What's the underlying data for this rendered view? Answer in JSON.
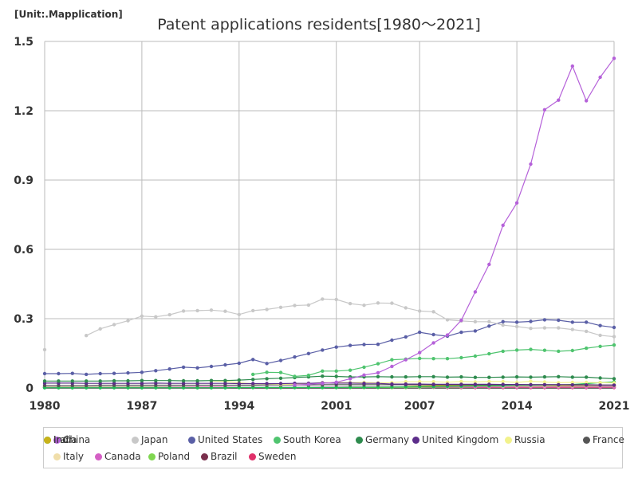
{
  "unit_label": "[Unit:.Mapplication]",
  "chart_data": {
    "type": "line",
    "title": "Patent applications residents[1980～2021]",
    "xlabel": "",
    "ylabel": "",
    "xlim": [
      1980,
      2021
    ],
    "ylim": [
      0,
      1.5
    ],
    "x_ticks": [
      "1980",
      "1987",
      "1994",
      "2001",
      "2007",
      "2014",
      "2021"
    ],
    "y_ticks": [
      "0",
      "0.3",
      "0.6",
      "0.9",
      "1.2",
      "1.5"
    ],
    "grid": true,
    "legend_position": "bottom",
    "x": [
      1980,
      1981,
      1982,
      1983,
      1984,
      1985,
      1986,
      1987,
      1988,
      1989,
      1990,
      1991,
      1992,
      1993,
      1994,
      1995,
      1996,
      1997,
      1998,
      1999,
      2000,
      2001,
      2002,
      2003,
      2004,
      2005,
      2006,
      2007,
      2008,
      2009,
      2010,
      2011,
      2012,
      2013,
      2014,
      2015,
      2016,
      2017,
      2018,
      2019,
      2020,
      2021
    ],
    "series": [
      {
        "name": "China",
        "color": "#b561d9",
        "values": [
          null,
          null,
          null,
          null,
          null,
          null,
          null,
          null,
          null,
          null,
          null,
          null,
          null,
          null,
          null,
          null,
          null,
          null,
          0.013,
          0.016,
          0.02,
          0.025,
          0.04,
          0.056,
          0.066,
          0.093,
          0.122,
          0.153,
          0.195,
          0.229,
          0.293,
          0.416,
          0.535,
          0.704,
          0.801,
          0.969,
          1.204,
          1.246,
          1.393,
          1.243,
          1.345,
          1.427
        ]
      },
      {
        "name": "Japan",
        "color": "#c8c8c8",
        "values": [
          0.166,
          null,
          null,
          0.227,
          0.256,
          0.274,
          0.291,
          0.311,
          0.308,
          0.317,
          0.333,
          0.335,
          0.337,
          0.332,
          0.318,
          0.335,
          0.34,
          0.349,
          0.357,
          0.359,
          0.385,
          0.383,
          0.365,
          0.358,
          0.368,
          0.367,
          0.347,
          0.333,
          0.33,
          0.295,
          0.29,
          0.287,
          0.287,
          0.272,
          0.266,
          0.258,
          0.26,
          0.26,
          0.253,
          0.245,
          0.228,
          0.222
        ]
      },
      {
        "name": "United States",
        "color": "#5a5fa6",
        "values": [
          0.062,
          0.062,
          0.063,
          0.059,
          0.062,
          0.063,
          0.065,
          0.068,
          0.075,
          0.082,
          0.09,
          0.087,
          0.093,
          0.1,
          0.107,
          0.123,
          0.106,
          0.119,
          0.134,
          0.149,
          0.164,
          0.177,
          0.184,
          0.188,
          0.189,
          0.207,
          0.221,
          0.241,
          0.231,
          0.224,
          0.241,
          0.247,
          0.268,
          0.287,
          0.285,
          0.288,
          0.295,
          0.293,
          0.285,
          0.285,
          0.27,
          0.262
        ]
      },
      {
        "name": "South Korea",
        "color": "#4fc46f",
        "values": [
          null,
          null,
          null,
          null,
          null,
          null,
          null,
          null,
          null,
          null,
          null,
          null,
          null,
          null,
          null,
          0.059,
          0.068,
          0.067,
          0.05,
          0.055,
          0.073,
          0.073,
          0.077,
          0.09,
          0.105,
          0.122,
          0.125,
          0.128,
          0.127,
          0.127,
          0.131,
          0.138,
          0.148,
          0.159,
          0.164,
          0.167,
          0.163,
          0.159,
          0.162,
          0.172,
          0.18,
          0.186
        ]
      },
      {
        "name": "Germany",
        "color": "#2e8b4e",
        "values": [
          0.03,
          0.03,
          0.03,
          0.03,
          0.03,
          0.031,
          0.031,
          0.032,
          0.032,
          0.032,
          0.031,
          0.031,
          0.032,
          0.032,
          0.034,
          0.037,
          0.04,
          0.042,
          0.045,
          0.048,
          0.051,
          0.05,
          0.048,
          0.048,
          0.049,
          0.048,
          0.048,
          0.049,
          0.049,
          0.047,
          0.048,
          0.046,
          0.046,
          0.047,
          0.048,
          0.047,
          0.048,
          0.049,
          0.047,
          0.047,
          0.043,
          0.04
        ]
      },
      {
        "name": "United Kingdom",
        "color": "#5c2d8a",
        "values": [
          0.021,
          0.021,
          0.021,
          0.02,
          0.02,
          0.02,
          0.02,
          0.02,
          0.021,
          0.02,
          0.02,
          0.02,
          0.02,
          0.02,
          0.019,
          0.019,
          0.019,
          0.019,
          0.02,
          0.02,
          0.022,
          0.021,
          0.021,
          0.02,
          0.02,
          0.017,
          0.017,
          0.017,
          0.016,
          0.016,
          0.016,
          0.016,
          0.016,
          0.015,
          0.015,
          0.014,
          0.014,
          0.014,
          0.013,
          0.013,
          0.012,
          0.012
        ]
      },
      {
        "name": "Russia",
        "color": "#f2f28c",
        "values": [
          null,
          null,
          null,
          null,
          null,
          null,
          null,
          null,
          null,
          null,
          null,
          null,
          0.03,
          0.029,
          0.023,
          0.018,
          0.018,
          0.016,
          0.017,
          0.019,
          0.023,
          0.024,
          0.023,
          0.024,
          0.022,
          0.023,
          0.027,
          0.027,
          0.027,
          0.025,
          0.028,
          0.026,
          0.028,
          0.028,
          0.024,
          0.029,
          0.026,
          0.023,
          0.024,
          0.024,
          0.023,
          0.022
        ]
      },
      {
        "name": "France",
        "color": "#555555",
        "values": [
          0.011,
          0.011,
          0.011,
          0.011,
          0.012,
          0.012,
          0.012,
          0.012,
          0.012,
          0.012,
          0.012,
          0.012,
          0.012,
          0.012,
          0.012,
          0.012,
          0.013,
          0.013,
          0.013,
          0.013,
          0.014,
          0.014,
          0.014,
          0.014,
          0.014,
          0.014,
          0.014,
          0.014,
          0.014,
          0.014,
          0.014,
          0.014,
          0.014,
          0.014,
          0.014,
          0.014,
          0.014,
          0.014,
          0.014,
          0.014,
          0.013,
          0.013
        ]
      },
      {
        "name": "India",
        "color": "#1fbf55",
        "values": [
          0.001,
          0.001,
          0.001,
          0.001,
          0.001,
          0.001,
          0.001,
          0.001,
          0.001,
          0.001,
          0.001,
          0.001,
          0.001,
          0.001,
          0.002,
          0.002,
          0.002,
          0.002,
          0.002,
          0.002,
          0.002,
          0.002,
          0.003,
          0.003,
          0.003,
          0.004,
          0.005,
          0.006,
          0.006,
          0.007,
          0.008,
          0.009,
          0.009,
          0.01,
          0.012,
          0.012,
          0.013,
          0.013,
          0.015,
          0.019,
          0.023,
          0.026
        ]
      },
      {
        "name": "Iran",
        "color": "#c9b21a",
        "values": [
          null,
          null,
          null,
          null,
          null,
          null,
          null,
          null,
          null,
          null,
          null,
          null,
          null,
          null,
          null,
          null,
          null,
          null,
          null,
          null,
          null,
          null,
          null,
          null,
          null,
          null,
          0.005,
          0.008,
          0.01,
          0.011,
          0.011,
          0.011,
          0.012,
          0.012,
          0.012,
          0.012,
          0.012,
          0.011,
          0.011,
          0.011,
          0.011,
          0.011
        ]
      },
      {
        "name": "Italy",
        "color": "#f0deaa",
        "values": [
          null,
          null,
          null,
          null,
          null,
          null,
          null,
          null,
          null,
          null,
          null,
          null,
          null,
          null,
          null,
          null,
          null,
          null,
          null,
          null,
          null,
          null,
          null,
          null,
          null,
          null,
          0.009,
          0.009,
          0.008,
          0.008,
          0.008,
          0.008,
          0.008,
          0.008,
          0.009,
          0.009,
          0.009,
          0.009,
          0.009,
          0.01,
          0.01,
          0.01
        ]
      },
      {
        "name": "Canada",
        "color": "#d45fc4",
        "values": [
          0.002,
          0.002,
          0.002,
          0.002,
          0.002,
          0.002,
          0.002,
          0.002,
          0.002,
          0.003,
          0.003,
          0.003,
          0.003,
          0.003,
          0.003,
          0.003,
          0.003,
          0.003,
          0.003,
          0.003,
          0.004,
          0.004,
          0.004,
          0.004,
          0.004,
          0.004,
          0.004,
          0.004,
          0.004,
          0.004,
          0.004,
          0.004,
          0.004,
          0.004,
          0.004,
          0.004,
          0.004,
          0.004,
          0.004,
          0.004,
          0.004,
          0.004
        ]
      },
      {
        "name": "Poland",
        "color": "#7fd650",
        "values": [
          0.004,
          0.004,
          0.004,
          0.004,
          0.004,
          0.004,
          0.004,
          0.004,
          0.004,
          0.004,
          0.004,
          0.003,
          0.003,
          0.002,
          0.002,
          0.002,
          0.002,
          0.002,
          0.002,
          0.002,
          0.002,
          0.002,
          0.002,
          0.002,
          0.002,
          0.002,
          0.002,
          0.002,
          0.003,
          0.003,
          0.003,
          0.004,
          0.004,
          0.004,
          0.004,
          0.005,
          0.004,
          0.004,
          0.004,
          0.004,
          0.004,
          0.004
        ]
      },
      {
        "name": "Brazil",
        "color": "#7a2f4d",
        "values": [
          0.002,
          0.002,
          0.002,
          0.002,
          0.002,
          0.002,
          0.002,
          0.002,
          0.002,
          0.002,
          0.002,
          0.002,
          0.003,
          0.003,
          0.003,
          0.003,
          0.003,
          0.003,
          0.003,
          0.003,
          0.003,
          0.003,
          0.004,
          0.004,
          0.004,
          0.004,
          0.004,
          0.004,
          0.004,
          0.004,
          0.005,
          0.005,
          0.005,
          0.005,
          0.005,
          0.005,
          0.005,
          0.005,
          0.005,
          0.005,
          0.005,
          0.005
        ]
      },
      {
        "name": "Sweden",
        "color": "#e0306a",
        "values": [
          0.004,
          0.004,
          0.004,
          0.004,
          0.004,
          0.004,
          0.004,
          0.004,
          0.004,
          0.004,
          0.004,
          0.004,
          0.004,
          0.004,
          0.003,
          0.003,
          0.003,
          0.003,
          0.003,
          0.003,
          0.003,
          0.003,
          0.003,
          0.003,
          0.003,
          0.003,
          0.003,
          0.003,
          0.003,
          0.002,
          0.002,
          0.002,
          0.002,
          0.002,
          0.002,
          0.002,
          0.002,
          0.002,
          0.002,
          0.002,
          0.002,
          0.002
        ]
      }
    ]
  }
}
